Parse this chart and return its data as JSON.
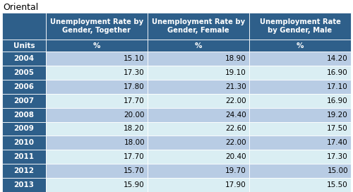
{
  "title": "Oriental",
  "col_headers": [
    "Unemployment Rate by\nGender, Together",
    "Unemployment Rate by\nGender, Female",
    "Unemployment Rate\nby Gender, Male"
  ],
  "units_label": "Units",
  "units_row": [
    "%",
    "%",
    "%"
  ],
  "years": [
    "2004",
    "2005",
    "2006",
    "2007",
    "2008",
    "2009",
    "2010",
    "2011",
    "2012",
    "2013"
  ],
  "together": [
    15.1,
    17.3,
    17.8,
    17.7,
    20.0,
    18.2,
    18.0,
    17.7,
    15.7,
    15.9
  ],
  "female": [
    18.9,
    19.1,
    21.3,
    22.0,
    24.4,
    22.6,
    22.0,
    20.4,
    19.7,
    17.9
  ],
  "male": [
    14.2,
    16.9,
    17.1,
    16.9,
    19.2,
    17.5,
    17.4,
    17.3,
    15.0,
    15.5
  ],
  "header_bg": "#2E5F8A",
  "header_text": "#FFFFFF",
  "units_bg": "#2E5F8A",
  "units_text": "#FFFFFF",
  "row_bg_dark": "#B8CCE4",
  "row_bg_light": "#DAEEF3",
  "year_bg": "#2E5F8A",
  "year_text": "#FFFFFF",
  "title_color": "#000000",
  "title_fontsize": 9,
  "header_fontsize": 7.2,
  "cell_fontsize": 7.5
}
